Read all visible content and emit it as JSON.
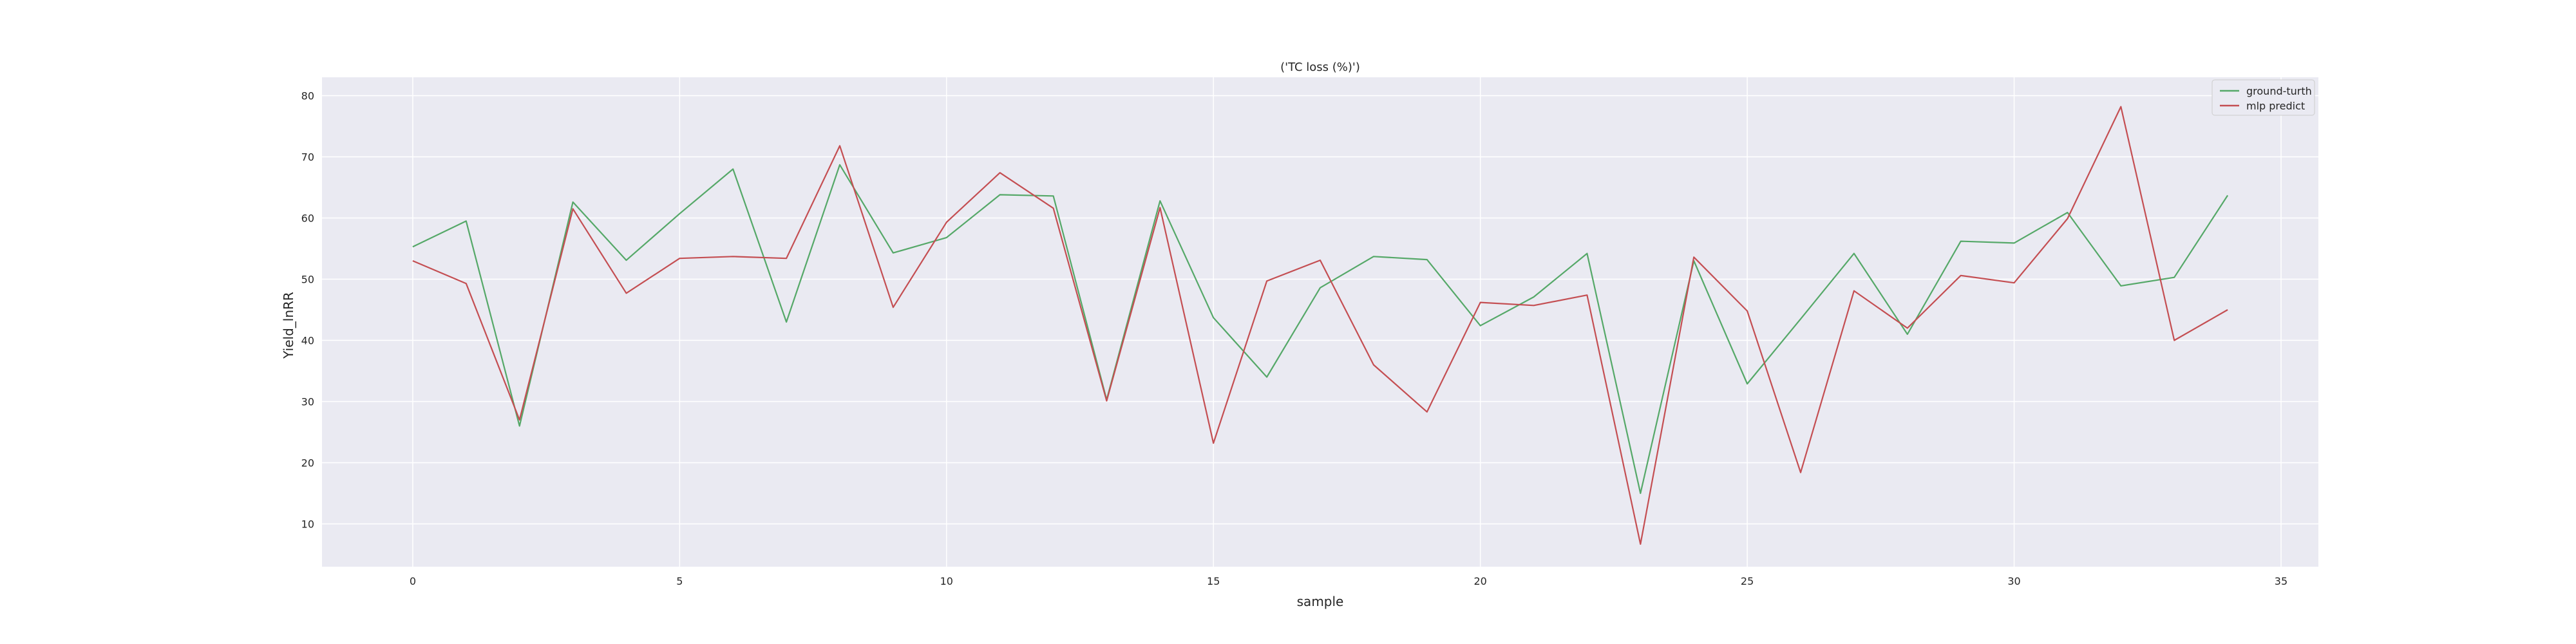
{
  "chart_data": {
    "type": "line",
    "title": "('TC loss (%)')",
    "xlabel": "sample",
    "ylabel": "Yield_lnRR",
    "xlim": [
      -1.7,
      35.7
    ],
    "ylim": [
      3,
      83
    ],
    "xticks": [
      0,
      5,
      10,
      15,
      20,
      25,
      30,
      35
    ],
    "yticks": [
      10,
      20,
      30,
      40,
      50,
      60,
      70,
      80
    ],
    "grid": true,
    "legend_position": "top-right",
    "series": [
      {
        "name": "ground-turth",
        "color": "#55a868",
        "values": [
          55.3,
          59.5,
          26.0,
          62.6,
          53.1,
          60.7,
          68.0,
          43.0,
          68.7,
          54.3,
          56.8,
          63.8,
          63.6,
          30.3,
          62.8,
          43.7,
          34.0,
          48.6,
          53.7,
          53.2,
          42.4,
          47.1,
          54.2,
          15.0,
          53.0,
          32.9,
          43.5,
          54.2,
          41.0,
          56.2,
          55.9,
          60.9,
          48.9,
          50.3,
          63.7
        ]
      },
      {
        "name": "mlp predict",
        "color": "#c44e52",
        "values": [
          53.0,
          49.3,
          27.0,
          61.5,
          47.7,
          53.4,
          53.7,
          53.4,
          71.8,
          45.4,
          59.3,
          67.4,
          61.6,
          30.1,
          61.7,
          23.2,
          49.7,
          53.1,
          36.0,
          28.3,
          46.2,
          45.7,
          47.4,
          6.7,
          53.6,
          44.8,
          18.4,
          48.1,
          42.0,
          50.6,
          49.4,
          59.9,
          78.2,
          40.0,
          45.0
        ]
      }
    ]
  }
}
